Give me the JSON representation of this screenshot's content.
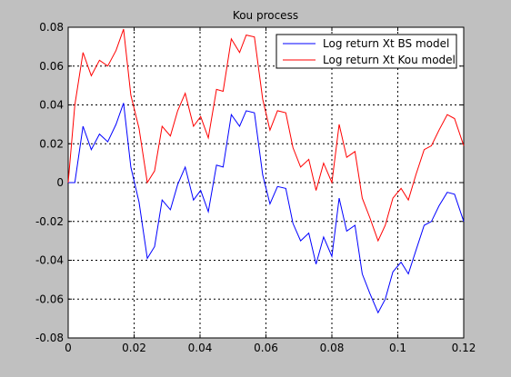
{
  "chart_data": {
    "type": "line",
    "title": "Kou process",
    "xlabel": "",
    "ylabel": "",
    "xlim": [
      0,
      0.12
    ],
    "ylim": [
      -0.08,
      0.08
    ],
    "grid": true,
    "legend_position": "top-right",
    "x_ticks": [
      "0",
      "0.02",
      "0.04",
      "0.06",
      "0.08",
      "0.1",
      "0.12"
    ],
    "y_ticks": [
      "-0.08",
      "-0.06",
      "-0.04",
      "-0.02",
      "0",
      "0.02",
      "0.04",
      "0.06",
      "0.08"
    ],
    "x": [
      0,
      0.002,
      0.0045,
      0.007,
      0.0095,
      0.012,
      0.0145,
      0.0168,
      0.019,
      0.0215,
      0.024,
      0.0262,
      0.0285,
      0.031,
      0.0332,
      0.0355,
      0.038,
      0.0402,
      0.0425,
      0.045,
      0.047,
      0.0495,
      0.052,
      0.054,
      0.0565,
      0.059,
      0.0612,
      0.0635,
      0.066,
      0.0682,
      0.0705,
      0.073,
      0.0752,
      0.0775,
      0.08,
      0.0822,
      0.0845,
      0.087,
      0.0892,
      0.0915,
      0.094,
      0.0962,
      0.0985,
      0.101,
      0.1032,
      0.1055,
      0.108,
      0.1102,
      0.1125,
      0.115,
      0.1172,
      0.12
    ],
    "series": [
      {
        "name": "Log return Xt BS model",
        "color": "#0000ff",
        "values": [
          0,
          0,
          0.029,
          0.017,
          0.025,
          0.021,
          0.03,
          0.041,
          0.008,
          -0.01,
          -0.039,
          -0.033,
          -0.009,
          -0.014,
          -0.001,
          0.008,
          -0.009,
          -0.004,
          -0.015,
          0.009,
          0.008,
          0.035,
          0.029,
          0.037,
          0.036,
          0.004,
          -0.011,
          -0.002,
          -0.003,
          -0.021,
          -0.03,
          -0.026,
          -0.042,
          -0.028,
          -0.038,
          -0.008,
          -0.025,
          -0.022,
          -0.047,
          -0.057,
          -0.067,
          -0.06,
          -0.046,
          -0.041,
          -0.047,
          -0.035,
          -0.022,
          -0.02,
          -0.012,
          -0.005,
          -0.006,
          -0.02
        ]
      },
      {
        "name": "Log return Xt Kou model",
        "color": "#ff0000",
        "values": [
          0,
          0.04,
          0.067,
          0.055,
          0.063,
          0.06,
          0.068,
          0.079,
          0.045,
          0.028,
          0,
          0.006,
          0.029,
          0.024,
          0.037,
          0.046,
          0.029,
          0.034,
          0.023,
          0.048,
          0.047,
          0.074,
          0.067,
          0.076,
          0.075,
          0.043,
          0.027,
          0.037,
          0.036,
          0.018,
          0.008,
          0.012,
          -0.004,
          0.01,
          0,
          0.03,
          0.013,
          0.016,
          -0.008,
          -0.018,
          -0.03,
          -0.022,
          -0.008,
          -0.003,
          -0.009,
          0.004,
          0.017,
          0.019,
          0.027,
          0.035,
          0.033,
          0.019
        ]
      }
    ]
  }
}
